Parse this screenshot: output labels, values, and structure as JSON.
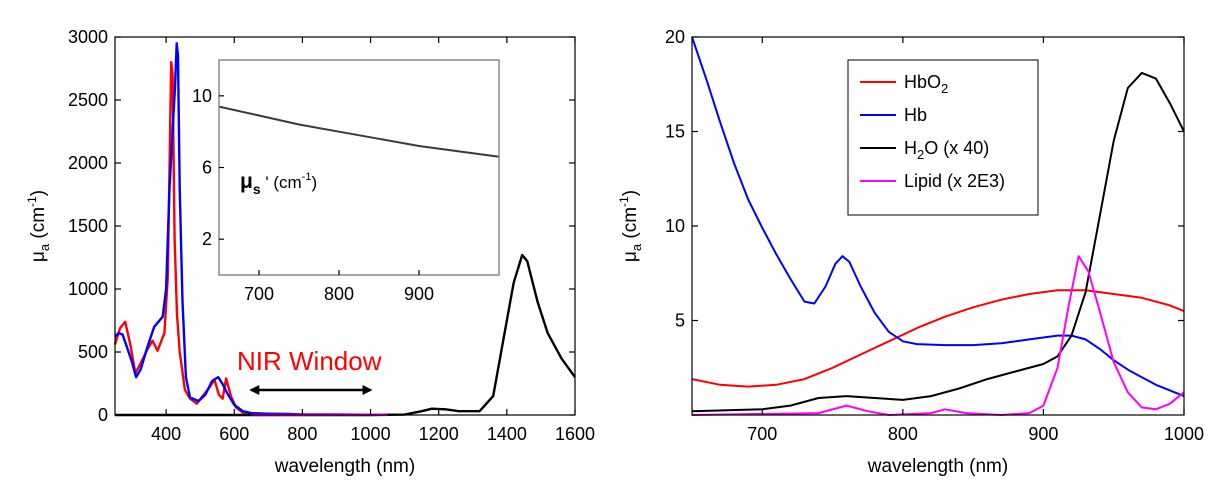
{
  "chart_data": [
    {
      "type": "line",
      "xlabel": "wavelength (nm)",
      "ylabel_main": "μ",
      "ylabel_sub": "a",
      "ylabel_unit": " (cm",
      "ylabel_sup": "-1",
      "ylabel_close": ")",
      "xlim": [
        250,
        1600
      ],
      "ylim": [
        0,
        3000
      ],
      "xticks": [
        400,
        600,
        800,
        1000,
        1200,
        1400,
        1600
      ],
      "yticks": [
        0,
        500,
        1000,
        1500,
        2000,
        2500,
        3000
      ],
      "annotation": "NIR Window",
      "annotation_color": "#ff0000",
      "window_range": [
        650,
        1000
      ],
      "grid": false,
      "series": [
        {
          "color": "#ff0000",
          "points": [
            [
              250,
              560
            ],
            [
              265,
              690
            ],
            [
              280,
              740
            ],
            [
              295,
              560
            ],
            [
              310,
              330
            ],
            [
              325,
              410
            ],
            [
              345,
              520
            ],
            [
              360,
              590
            ],
            [
              375,
              510
            ],
            [
              395,
              650
            ],
            [
              405,
              1100
            ],
            [
              412,
              2300
            ],
            [
              415,
              2800
            ],
            [
              419,
              2700
            ],
            [
              425,
              1400
            ],
            [
              432,
              800
            ],
            [
              440,
              500
            ],
            [
              455,
              200
            ],
            [
              470,
              130
            ],
            [
              490,
              90
            ],
            [
              510,
              160
            ],
            [
              530,
              230
            ],
            [
              542,
              280
            ],
            [
              555,
              160
            ],
            [
              566,
              130
            ],
            [
              576,
              290
            ],
            [
              590,
              150
            ],
            [
              605,
              60
            ],
            [
              625,
              20
            ],
            [
              650,
              8
            ],
            [
              700,
              3
            ],
            [
              800,
              2
            ],
            [
              1000,
              1
            ]
          ]
        },
        {
          "color": "#0000ff",
          "points": [
            [
              250,
              620
            ],
            [
              260,
              650
            ],
            [
              272,
              640
            ],
            [
              285,
              540
            ],
            [
              300,
              420
            ],
            [
              312,
              300
            ],
            [
              325,
              360
            ],
            [
              345,
              540
            ],
            [
              365,
              700
            ],
            [
              390,
              780
            ],
            [
              400,
              1000
            ],
            [
              410,
              1800
            ],
            [
              420,
              2300
            ],
            [
              426,
              2600
            ],
            [
              431,
              2950
            ],
            [
              435,
              2850
            ],
            [
              440,
              1800
            ],
            [
              448,
              900
            ],
            [
              458,
              300
            ],
            [
              470,
              140
            ],
            [
              495,
              110
            ],
            [
              515,
              160
            ],
            [
              535,
              270
            ],
            [
              553,
              300
            ],
            [
              565,
              250
            ],
            [
              580,
              170
            ],
            [
              600,
              80
            ],
            [
              625,
              30
            ],
            [
              650,
              15
            ],
            [
              700,
              10
            ],
            [
              760,
              8
            ],
            [
              800,
              5
            ],
            [
              900,
              4
            ],
            [
              1000,
              2
            ]
          ]
        },
        {
          "color": "#000000",
          "points": [
            [
              250,
              0
            ],
            [
              1000,
              0
            ],
            [
              1100,
              3
            ],
            [
              1150,
              30
            ],
            [
              1180,
              50
            ],
            [
              1220,
              45
            ],
            [
              1260,
              30
            ],
            [
              1320,
              30
            ],
            [
              1360,
              150
            ],
            [
              1390,
              600
            ],
            [
              1420,
              1050
            ],
            [
              1445,
              1270
            ],
            [
              1460,
              1220
            ],
            [
              1490,
              900
            ],
            [
              1520,
              650
            ],
            [
              1560,
              450
            ],
            [
              1600,
              300
            ]
          ]
        },
        {
          "color": "#ff00ff",
          "points": [
            [
              650,
              0
            ],
            [
              1000,
              2
            ],
            [
              1050,
              1
            ]
          ]
        }
      ]
    },
    {
      "type": "line",
      "xlim": [
        650,
        1000
      ],
      "ylim": [
        0,
        12
      ],
      "xticks": [
        700,
        800,
        900
      ],
      "yticks": [
        2,
        6,
        10
      ],
      "label_main": "μ",
      "label_sub": "s",
      "label_unit": " ' (cm",
      "label_sup": "-1",
      "label_close": ")",
      "series": [
        {
          "color": "#3a3a3a",
          "points": [
            [
              650,
              9.4
            ],
            [
              700,
              8.9
            ],
            [
              750,
              8.4
            ],
            [
              800,
              8.0
            ],
            [
              850,
              7.6
            ],
            [
              900,
              7.2
            ],
            [
              950,
              6.9
            ],
            [
              1000,
              6.6
            ]
          ]
        }
      ]
    },
    {
      "type": "line",
      "xlabel": "wavelength (nm)",
      "ylabel_main": "μ",
      "ylabel_sub": "a",
      "ylabel_unit": " (cm",
      "ylabel_sup": "-1",
      "ylabel_close": ")",
      "xlim": [
        650,
        1000
      ],
      "ylim": [
        0,
        20
      ],
      "xticks": [
        700,
        800,
        900,
        1000
      ],
      "yticks": [
        5,
        10,
        15,
        20
      ],
      "legend_position": "top-center",
      "legend": [
        {
          "main": "HbO",
          "sub": "2",
          "rest": "",
          "color": "#ff0000"
        },
        {
          "main": "Hb",
          "sub": "",
          "rest": "",
          "color": "#0000ff"
        },
        {
          "main": "H",
          "sub": "2",
          "rest": "O (x 40)",
          "color": "#000000"
        },
        {
          "main": "Lipid (x 2E3)",
          "sub": "",
          "rest": "",
          "color": "#ff00ff"
        }
      ],
      "series": [
        {
          "color": "#ff0000",
          "points": [
            [
              650,
              1.9
            ],
            [
              670,
              1.6
            ],
            [
              690,
              1.5
            ],
            [
              710,
              1.6
            ],
            [
              730,
              1.9
            ],
            [
              750,
              2.5
            ],
            [
              770,
              3.2
            ],
            [
              790,
              3.9
            ],
            [
              810,
              4.6
            ],
            [
              830,
              5.2
            ],
            [
              850,
              5.7
            ],
            [
              870,
              6.1
            ],
            [
              890,
              6.4
            ],
            [
              910,
              6.6
            ],
            [
              930,
              6.6
            ],
            [
              950,
              6.4
            ],
            [
              970,
              6.2
            ],
            [
              990,
              5.8
            ],
            [
              1000,
              5.5
            ]
          ]
        },
        {
          "color": "#0000ff",
          "points": [
            [
              650,
              20
            ],
            [
              660,
              17.8
            ],
            [
              670,
              15.5
            ],
            [
              680,
              13.3
            ],
            [
              690,
              11.4
            ],
            [
              700,
              9.9
            ],
            [
              710,
              8.5
            ],
            [
              720,
              7.2
            ],
            [
              730,
              6.0
            ],
            [
              737,
              5.9
            ],
            [
              745,
              6.8
            ],
            [
              752,
              8.0
            ],
            [
              757,
              8.4
            ],
            [
              762,
              8.1
            ],
            [
              770,
              6.8
            ],
            [
              780,
              5.4
            ],
            [
              790,
              4.4
            ],
            [
              800,
              3.9
            ],
            [
              810,
              3.75
            ],
            [
              830,
              3.7
            ],
            [
              850,
              3.7
            ],
            [
              870,
              3.8
            ],
            [
              890,
              4.0
            ],
            [
              910,
              4.2
            ],
            [
              920,
              4.2
            ],
            [
              930,
              4.0
            ],
            [
              940,
              3.5
            ],
            [
              950,
              2.9
            ],
            [
              960,
              2.4
            ],
            [
              970,
              2.0
            ],
            [
              980,
              1.6
            ],
            [
              990,
              1.3
            ],
            [
              1000,
              1.0
            ]
          ]
        },
        {
          "color": "#000000",
          "points": [
            [
              650,
              0.2
            ],
            [
              700,
              0.3
            ],
            [
              720,
              0.5
            ],
            [
              740,
              0.9
            ],
            [
              760,
              1.0
            ],
            [
              780,
              0.9
            ],
            [
              800,
              0.8
            ],
            [
              820,
              1.0
            ],
            [
              840,
              1.4
            ],
            [
              860,
              1.9
            ],
            [
              880,
              2.3
            ],
            [
              900,
              2.7
            ],
            [
              910,
              3.1
            ],
            [
              920,
              4.2
            ],
            [
              930,
              6.5
            ],
            [
              940,
              10.5
            ],
            [
              950,
              14.5
            ],
            [
              960,
              17.3
            ],
            [
              970,
              18.1
            ],
            [
              980,
              17.8
            ],
            [
              990,
              16.5
            ],
            [
              1000,
              15.0
            ]
          ]
        },
        {
          "color": "#ff00ff",
          "points": [
            [
              650,
              0
            ],
            [
              740,
              0.1
            ],
            [
              760,
              0.5
            ],
            [
              775,
              0.2
            ],
            [
              790,
              0
            ],
            [
              820,
              0.1
            ],
            [
              830,
              0.3
            ],
            [
              845,
              0.1
            ],
            [
              870,
              0
            ],
            [
              890,
              0.1
            ],
            [
              900,
              0.5
            ],
            [
              910,
              2.5
            ],
            [
              918,
              5.8
            ],
            [
              925,
              8.4
            ],
            [
              932,
              7.6
            ],
            [
              940,
              5.5
            ],
            [
              950,
              2.8
            ],
            [
              960,
              1.2
            ],
            [
              970,
              0.4
            ],
            [
              980,
              0.3
            ],
            [
              990,
              0.6
            ],
            [
              1000,
              1.2
            ]
          ]
        }
      ]
    }
  ]
}
